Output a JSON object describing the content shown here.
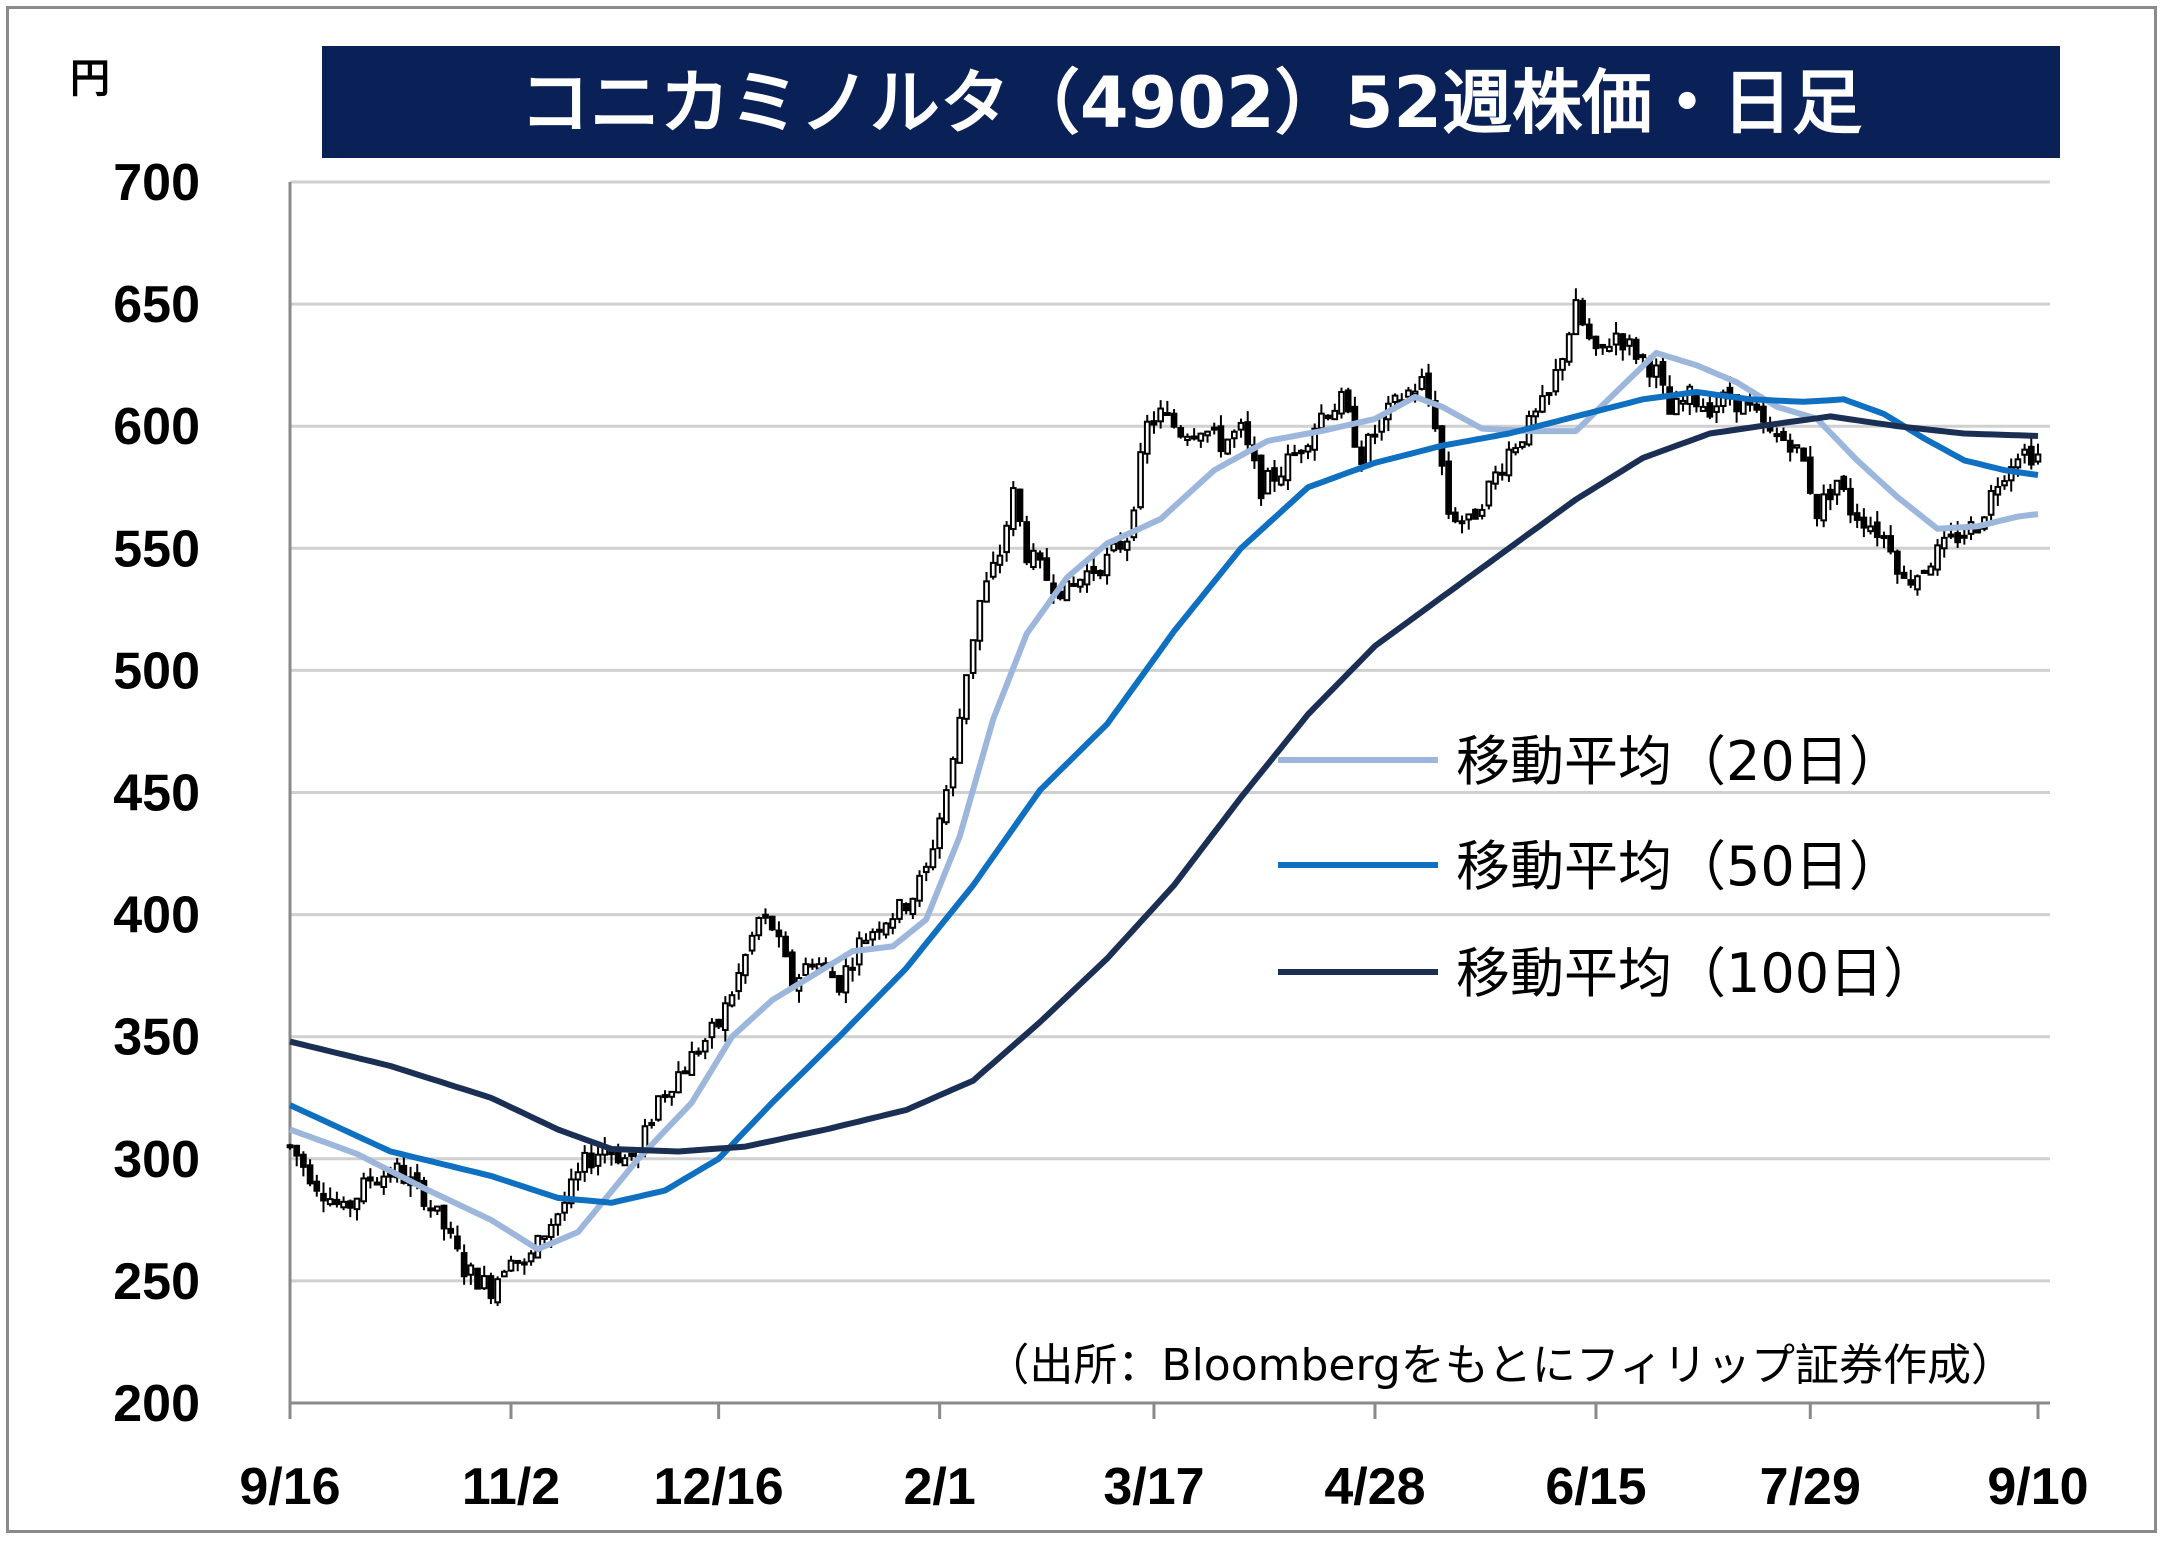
{
  "unit_label": "円",
  "title": "コニカミノルタ（4902）52週株価・日足",
  "source_note": "（出所：Bloombergをもとにフィリップ証券作成）",
  "colors": {
    "title_bg": "#0a2158",
    "ma20": "#9db7dc",
    "ma50": "#0f6fc0",
    "ma100": "#1b2f55",
    "candle": "#000000"
  },
  "chart_data": {
    "type": "candlestick",
    "title": "コニカミノルタ（4902）52週株価・日足",
    "ylabel": "円",
    "ylim": [
      200,
      700
    ],
    "yticks": [
      200,
      250,
      300,
      350,
      400,
      450,
      500,
      550,
      600,
      650,
      700
    ],
    "grid": true,
    "legend_position": "center-right",
    "x_tick_labels": [
      "9/16",
      "11/2",
      "12/16",
      "2/1",
      "3/17",
      "4/28",
      "6/15",
      "7/29",
      "9/10"
    ],
    "x_tick_index": [
      0,
      33,
      64,
      97,
      129,
      162,
      195,
      227,
      261
    ],
    "num_days": 262,
    "price_anchors": [
      [
        0,
        305
      ],
      [
        4,
        290
      ],
      [
        8,
        278
      ],
      [
        12,
        292
      ],
      [
        16,
        295
      ],
      [
        20,
        285
      ],
      [
        23,
        272
      ],
      [
        26,
        255
      ],
      [
        30,
        247
      ],
      [
        33,
        262
      ],
      [
        35,
        255
      ],
      [
        38,
        270
      ],
      [
        41,
        282
      ],
      [
        44,
        298
      ],
      [
        47,
        305
      ],
      [
        50,
        300
      ],
      [
        52,
        302
      ],
      [
        55,
        325
      ],
      [
        58,
        335
      ],
      [
        61,
        345
      ],
      [
        64,
        355
      ],
      [
        67,
        375
      ],
      [
        70,
        398
      ],
      [
        72,
        395
      ],
      [
        75,
        372
      ],
      [
        78,
        382
      ],
      [
        82,
        372
      ],
      [
        85,
        388
      ],
      [
        88,
        397
      ],
      [
        91,
        402
      ],
      [
        93,
        408
      ],
      [
        95,
        418
      ],
      [
        97,
        440
      ],
      [
        99,
        462
      ],
      [
        101,
        500
      ],
      [
        103,
        528
      ],
      [
        106,
        548
      ],
      [
        108,
        572
      ],
      [
        110,
        548
      ],
      [
        113,
        538
      ],
      [
        116,
        532
      ],
      [
        119,
        540
      ],
      [
        122,
        545
      ],
      [
        125,
        555
      ],
      [
        128,
        600
      ],
      [
        130,
        605
      ],
      [
        133,
        598
      ],
      [
        136,
        600
      ],
      [
        139,
        593
      ],
      [
        142,
        598
      ],
      [
        145,
        575
      ],
      [
        148,
        582
      ],
      [
        151,
        592
      ],
      [
        154,
        605
      ],
      [
        157,
        610
      ],
      [
        160,
        588
      ],
      [
        163,
        602
      ],
      [
        166,
        612
      ],
      [
        169,
        618
      ],
      [
        171,
        602
      ],
      [
        173,
        565
      ],
      [
        176,
        560
      ],
      [
        179,
        575
      ],
      [
        182,
        590
      ],
      [
        185,
        600
      ],
      [
        188,
        612
      ],
      [
        190,
        630
      ],
      [
        192,
        648
      ],
      [
        195,
        628
      ],
      [
        198,
        638
      ],
      [
        201,
        630
      ],
      [
        204,
        622
      ],
      [
        206,
        605
      ],
      [
        209,
        612
      ],
      [
        212,
        608
      ],
      [
        215,
        612
      ],
      [
        218,
        607
      ],
      [
        221,
        596
      ],
      [
        224,
        594
      ],
      [
        226,
        585
      ],
      [
        228,
        565
      ],
      [
        231,
        578
      ],
      [
        233,
        566
      ],
      [
        236,
        560
      ],
      [
        239,
        552
      ],
      [
        241,
        536
      ],
      [
        243,
        540
      ],
      [
        246,
        548
      ],
      [
        249,
        555
      ],
      [
        252,
        560
      ],
      [
        255,
        578
      ],
      [
        258,
        590
      ],
      [
        261,
        588
      ]
    ],
    "series": [
      {
        "name": "移動平均（20日）",
        "anchors": [
          [
            0,
            312
          ],
          [
            10,
            302
          ],
          [
            20,
            288
          ],
          [
            30,
            275
          ],
          [
            37,
            263
          ],
          [
            43,
            270
          ],
          [
            52,
            300
          ],
          [
            60,
            323
          ],
          [
            66,
            350
          ],
          [
            72,
            365
          ],
          [
            78,
            375
          ],
          [
            84,
            385
          ],
          [
            90,
            387
          ],
          [
            95,
            398
          ],
          [
            100,
            432
          ],
          [
            105,
            480
          ],
          [
            110,
            515
          ],
          [
            116,
            538
          ],
          [
            122,
            552
          ],
          [
            130,
            562
          ],
          [
            138,
            582
          ],
          [
            146,
            594
          ],
          [
            154,
            598
          ],
          [
            162,
            603
          ],
          [
            168,
            612
          ],
          [
            172,
            608
          ],
          [
            178,
            599
          ],
          [
            185,
            598
          ],
          [
            192,
            598
          ],
          [
            198,
            614
          ],
          [
            204,
            630
          ],
          [
            210,
            625
          ],
          [
            216,
            618
          ],
          [
            222,
            608
          ],
          [
            228,
            603
          ],
          [
            234,
            586
          ],
          [
            240,
            571
          ],
          [
            246,
            558
          ],
          [
            252,
            559
          ],
          [
            258,
            563
          ],
          [
            261,
            564
          ]
        ],
        "color": "#9db7dc"
      },
      {
        "name": "移動平均（50日）",
        "anchors": [
          [
            0,
            322
          ],
          [
            15,
            303
          ],
          [
            30,
            293
          ],
          [
            40,
            284
          ],
          [
            48,
            282
          ],
          [
            56,
            287
          ],
          [
            64,
            300
          ],
          [
            72,
            323
          ],
          [
            82,
            350
          ],
          [
            92,
            378
          ],
          [
            102,
            412
          ],
          [
            112,
            451
          ],
          [
            122,
            478
          ],
          [
            132,
            516
          ],
          [
            142,
            550
          ],
          [
            152,
            575
          ],
          [
            162,
            585
          ],
          [
            172,
            592
          ],
          [
            182,
            597
          ],
          [
            192,
            604
          ],
          [
            202,
            611
          ],
          [
            210,
            614
          ],
          [
            218,
            611
          ],
          [
            226,
            610
          ],
          [
            232,
            611
          ],
          [
            238,
            605
          ],
          [
            244,
            595
          ],
          [
            250,
            586
          ],
          [
            256,
            582
          ],
          [
            261,
            580
          ]
        ],
        "color": "#0f6fc0"
      },
      {
        "name": "移動平均（100日）",
        "anchors": [
          [
            0,
            348
          ],
          [
            15,
            338
          ],
          [
            30,
            325
          ],
          [
            40,
            312
          ],
          [
            48,
            304
          ],
          [
            58,
            303
          ],
          [
            68,
            305
          ],
          [
            80,
            312
          ],
          [
            92,
            320
          ],
          [
            102,
            332
          ],
          [
            112,
            356
          ],
          [
            122,
            382
          ],
          [
            132,
            412
          ],
          [
            142,
            448
          ],
          [
            152,
            482
          ],
          [
            162,
            510
          ],
          [
            172,
            530
          ],
          [
            182,
            550
          ],
          [
            192,
            570
          ],
          [
            202,
            587
          ],
          [
            212,
            597
          ],
          [
            222,
            601
          ],
          [
            230,
            604
          ],
          [
            240,
            600
          ],
          [
            250,
            597
          ],
          [
            261,
            596
          ]
        ],
        "color": "#1b2f55"
      }
    ]
  }
}
